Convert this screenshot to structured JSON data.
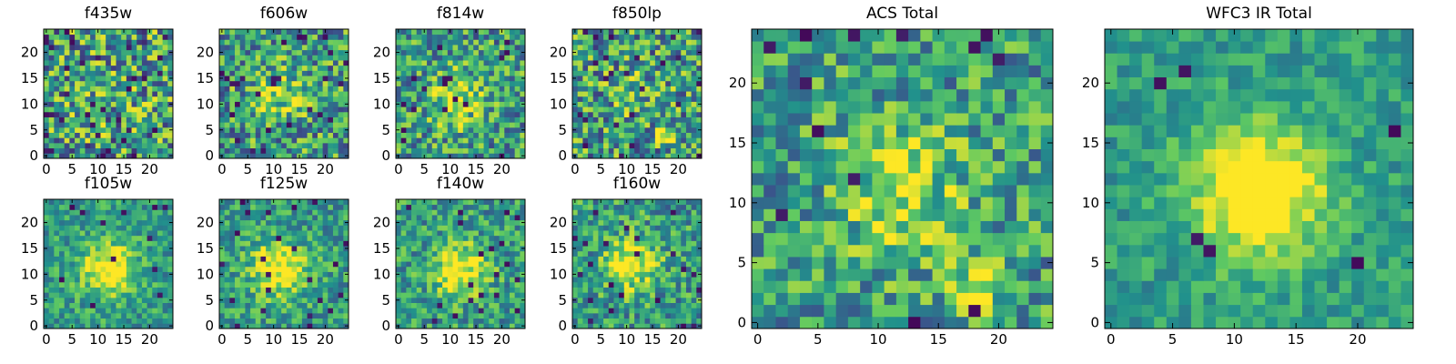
{
  "figure": {
    "description_colormap": "viridis",
    "colormap_stops": [
      "#440154",
      "#3b528b",
      "#21918c",
      "#5ec962",
      "#fde725"
    ]
  },
  "chart_data": [
    {
      "type": "heatmap",
      "id": "f435w",
      "title": "f435w",
      "xlim": [
        0,
        24
      ],
      "ylim": [
        0,
        24
      ],
      "xticks": [
        0,
        5,
        10,
        15,
        20
      ],
      "yticks": [
        0,
        5,
        10,
        15,
        20
      ],
      "xtick_labels": [
        "0",
        "5",
        "10",
        "15",
        "20"
      ],
      "ytick_labels": [
        "0",
        "5",
        "10",
        "15",
        "20"
      ],
      "grid_size": 25,
      "seed": 11,
      "noise": 0.42,
      "blob": {
        "cx": 12,
        "cy": 12,
        "sigma": 5,
        "amp": 0.05
      },
      "extra": [],
      "dark_fraction": 0.05
    },
    {
      "type": "heatmap",
      "id": "f606w",
      "title": "f606w",
      "xlim": [
        0,
        24
      ],
      "ylim": [
        0,
        24
      ],
      "xticks": [
        0,
        5,
        10,
        15,
        20
      ],
      "yticks": [
        0,
        5,
        10,
        15,
        20
      ],
      "xtick_labels": [
        "0",
        "5",
        "10",
        "15",
        "20"
      ],
      "ytick_labels": [
        "0",
        "5",
        "10",
        "15",
        "20"
      ],
      "grid_size": 25,
      "seed": 23,
      "noise": 0.36,
      "blob": {
        "cx": 11,
        "cy": 12,
        "sigma": 3.5,
        "amp": 0.3
      },
      "extra": [],
      "dark_fraction": 0.04
    },
    {
      "type": "heatmap",
      "id": "f814w",
      "title": "f814w",
      "xlim": [
        0,
        24
      ],
      "ylim": [
        0,
        24
      ],
      "xticks": [
        0,
        5,
        10,
        15,
        20
      ],
      "yticks": [
        0,
        5,
        10,
        15,
        20
      ],
      "xtick_labels": [
        "0",
        "5",
        "10",
        "15",
        "20"
      ],
      "ytick_labels": [
        "0",
        "5",
        "10",
        "15",
        "20"
      ],
      "grid_size": 25,
      "seed": 37,
      "noise": 0.34,
      "blob": {
        "cx": 11,
        "cy": 11,
        "sigma": 3.5,
        "amp": 0.35
      },
      "extra": [],
      "dark_fraction": 0.03
    },
    {
      "type": "heatmap",
      "id": "f850lp",
      "title": "f850lp",
      "xlim": [
        0,
        24
      ],
      "ylim": [
        0,
        24
      ],
      "xticks": [
        0,
        5,
        10,
        15,
        20
      ],
      "yticks": [
        0,
        5,
        10,
        15,
        20
      ],
      "xtick_labels": [
        "0",
        "5",
        "10",
        "15",
        "20"
      ],
      "ytick_labels": [
        "0",
        "5",
        "10",
        "15",
        "20"
      ],
      "grid_size": 25,
      "seed": 41,
      "noise": 0.38,
      "blob": {
        "cx": 12,
        "cy": 12,
        "sigma": 4,
        "amp": 0.1
      },
      "extra": [
        {
          "cx": 18,
          "cy": 4,
          "sigma": 1.2,
          "amp": 0.55
        }
      ],
      "dark_fraction": 0.05
    },
    {
      "type": "heatmap",
      "id": "f105w",
      "title": "f105w",
      "xlim": [
        0,
        24
      ],
      "ylim": [
        0,
        24
      ],
      "xticks": [
        0,
        5,
        10,
        15,
        20
      ],
      "yticks": [
        0,
        5,
        10,
        15,
        20
      ],
      "xtick_labels": [
        "0",
        "5",
        "10",
        "15",
        "20"
      ],
      "ytick_labels": [
        "0",
        "5",
        "10",
        "15",
        "20"
      ],
      "grid_size": 25,
      "seed": 53,
      "noise": 0.22,
      "blob": {
        "cx": 12,
        "cy": 11,
        "sigma": 3.6,
        "amp": 0.55
      },
      "extra": [],
      "dark_fraction": 0.02
    },
    {
      "type": "heatmap",
      "id": "f125w",
      "title": "f125w",
      "xlim": [
        0,
        24
      ],
      "ylim": [
        0,
        24
      ],
      "xticks": [
        0,
        5,
        10,
        15,
        20
      ],
      "yticks": [
        0,
        5,
        10,
        15,
        20
      ],
      "xtick_labels": [
        "0",
        "5",
        "10",
        "15",
        "20"
      ],
      "ytick_labels": [
        "0",
        "5",
        "10",
        "15",
        "20"
      ],
      "grid_size": 25,
      "seed": 67,
      "noise": 0.24,
      "blob": {
        "cx": 11,
        "cy": 11,
        "sigma": 3.8,
        "amp": 0.5
      },
      "extra": [],
      "dark_fraction": 0.03
    },
    {
      "type": "heatmap",
      "id": "f140w",
      "title": "f140w",
      "xlim": [
        0,
        24
      ],
      "ylim": [
        0,
        24
      ],
      "xticks": [
        0,
        5,
        10,
        15,
        20
      ],
      "yticks": [
        0,
        5,
        10,
        15,
        20
      ],
      "xtick_labels": [
        "0",
        "5",
        "10",
        "15",
        "20"
      ],
      "ytick_labels": [
        "0",
        "5",
        "10",
        "15",
        "20"
      ],
      "grid_size": 25,
      "seed": 71,
      "noise": 0.26,
      "blob": {
        "cx": 12,
        "cy": 11,
        "sigma": 3.6,
        "amp": 0.5
      },
      "extra": [],
      "dark_fraction": 0.03
    },
    {
      "type": "heatmap",
      "id": "f160w",
      "title": "f160w",
      "xlim": [
        0,
        24
      ],
      "ylim": [
        0,
        24
      ],
      "xticks": [
        0,
        5,
        10,
        15,
        20
      ],
      "yticks": [
        0,
        5,
        10,
        15,
        20
      ],
      "xtick_labels": [
        "0",
        "5",
        "10",
        "15",
        "20"
      ],
      "ytick_labels": [
        "0",
        "5",
        "10",
        "15",
        "20"
      ],
      "grid_size": 25,
      "seed": 83,
      "noise": 0.28,
      "blob": {
        "cx": 11,
        "cy": 12,
        "sigma": 3.4,
        "amp": 0.5
      },
      "extra": [],
      "dark_fraction": 0.04
    },
    {
      "type": "heatmap",
      "id": "acs-total",
      "title": "ACS Total",
      "xlim": [
        0,
        24
      ],
      "ylim": [
        0,
        24
      ],
      "xticks": [
        0,
        5,
        10,
        15,
        20
      ],
      "yticks": [
        0,
        5,
        10,
        15,
        20
      ],
      "xtick_labels": [
        "0",
        "5",
        "10",
        "15",
        "20"
      ],
      "ytick_labels": [
        "0",
        "5",
        "10",
        "15",
        "20"
      ],
      "grid_size": 25,
      "seed": 97,
      "noise": 0.3,
      "blob": {
        "cx": 12,
        "cy": 11,
        "sigma": 4,
        "amp": 0.3
      },
      "extra": [
        {
          "cx": 18,
          "cy": 3,
          "sigma": 1.5,
          "amp": 0.35
        }
      ],
      "dark_fraction": 0.025
    },
    {
      "type": "heatmap",
      "id": "wfc3-ir-total",
      "title": "WFC3 IR Total",
      "xlim": [
        0,
        24
      ],
      "ylim": [
        0,
        24
      ],
      "xticks": [
        0,
        5,
        10,
        15,
        20
      ],
      "yticks": [
        0,
        5,
        10,
        15,
        20
      ],
      "xtick_labels": [
        "0",
        "5",
        "10",
        "15",
        "20"
      ],
      "ytick_labels": [
        "0",
        "5",
        "10",
        "15",
        "20"
      ],
      "grid_size": 25,
      "seed": 109,
      "noise": 0.16,
      "blob": {
        "cx": 12,
        "cy": 11,
        "sigma": 3.8,
        "amp": 0.65
      },
      "extra": [],
      "dark_fraction": 0.015
    }
  ]
}
